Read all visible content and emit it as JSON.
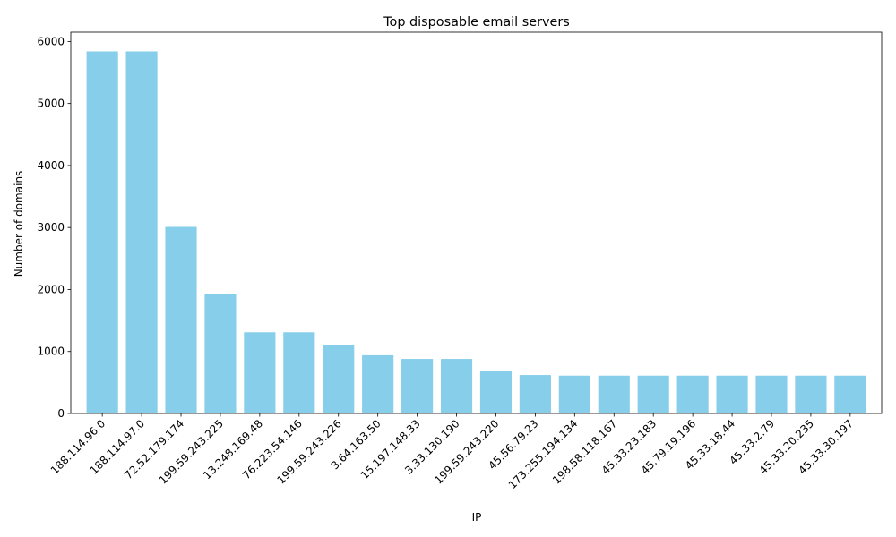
{
  "chart_data": {
    "type": "bar",
    "title": "Top disposable email servers",
    "xlabel": "IP",
    "ylabel": "Number of domains",
    "ylim": [
      0,
      6150
    ],
    "yticks": [
      0,
      1000,
      2000,
      3000,
      4000,
      5000,
      6000
    ],
    "ytick_labels": [
      "0",
      "1000",
      "2000",
      "3000",
      "4000",
      "5000",
      "6000"
    ],
    "bar_color": "#87CEEB",
    "grid": false,
    "categories": [
      "188.114.96.0",
      "188.114.97.0",
      "72.52.179.174",
      "199.59.243.225",
      "13.248.169.48",
      "76.223.54.146",
      "199.59.243.226",
      "3.64.163.50",
      "15.197.148.33",
      "3.33.130.190",
      "199.59.243.220",
      "45.56.79.23",
      "173.255.194.134",
      "198.58.118.167",
      "45.33.23.183",
      "45.79.19.196",
      "45.33.18.44",
      "45.33.2.79",
      "45.33.20.235",
      "45.33.30.197"
    ],
    "values": [
      5840,
      5840,
      3010,
      1920,
      1310,
      1310,
      1100,
      940,
      880,
      880,
      690,
      620,
      610,
      610,
      610,
      610,
      610,
      610,
      610,
      610
    ]
  }
}
